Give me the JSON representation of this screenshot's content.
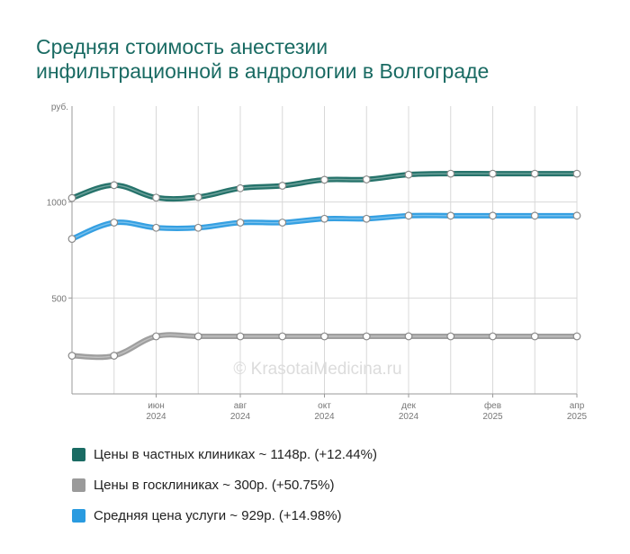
{
  "title_lines": [
    "Средняя стоимость анестезии",
    "инфильтрационной в андрологии в Волгограде"
  ],
  "watermark": "© KrasotaiMedicina.ru",
  "chart_data": {
    "type": "line",
    "y_unit": "руб.",
    "ylim": [
      0,
      1500
    ],
    "y_ticks": [
      500,
      1000
    ],
    "x": [
      "2024-04",
      "2024-05",
      "2024-06",
      "2024-07",
      "2024-08",
      "2024-09",
      "2024-10",
      "2024-11",
      "2024-12",
      "2025-01",
      "2025-02",
      "2025-03",
      "2025-04"
    ],
    "x_tick_labels": [
      {
        "month": "июн",
        "year": "2024"
      },
      {
        "month": "авг",
        "year": "2024"
      },
      {
        "month": "окт",
        "year": "2024"
      },
      {
        "month": "дек",
        "year": "2024"
      },
      {
        "month": "фев",
        "year": "2025"
      },
      {
        "month": "апр",
        "year": "2025"
      }
    ],
    "grid": true,
    "legend_position": "bottom",
    "series": [
      {
        "name": "Цены в частных клиниках ~ 1148р. (+12.44%)",
        "color": "#1a6b63",
        "values": [
          1021,
          1088,
          1023,
          1026,
          1072,
          1085,
          1116,
          1118,
          1143,
          1148,
          1148,
          1148,
          1148
        ]
      },
      {
        "name": "Цены в госклиниках ~ 300р. (+50.75%)",
        "color": "#9a9a9a",
        "values": [
          199,
          199,
          300,
          300,
          300,
          300,
          300,
          300,
          300,
          300,
          300,
          300,
          300
        ]
      },
      {
        "name": "Средняя цена услуги ~ 929р. (+14.98%)",
        "color": "#2a9be0",
        "values": [
          808,
          893,
          866,
          866,
          893,
          893,
          913,
          913,
          929,
          929,
          929,
          929,
          929
        ]
      }
    ]
  }
}
